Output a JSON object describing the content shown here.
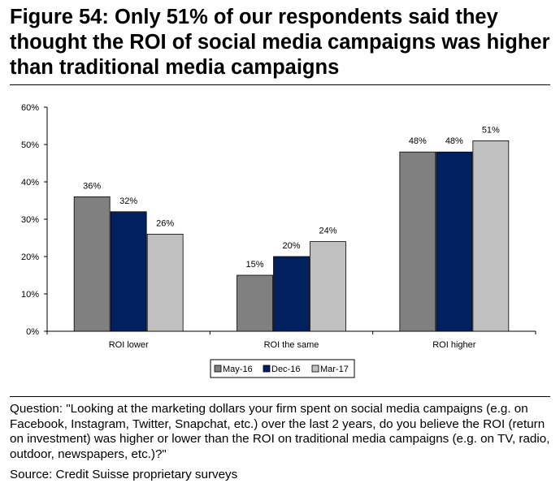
{
  "figure": {
    "title": "Figure 54: Only 51% of our respondents said they thought the ROI of social media campaigns was higher than traditional media campaigns",
    "question": "Question: \"Looking at the marketing dollars your firm spent on social media campaigns (e.g. on Facebook, Instagram, Twitter, Snapchat, etc.) over the last 2 years, do you believe the ROI (return on investment) was higher or lower than the ROI on traditional media campaigns (e.g. on TV, radio, outdoor, newspapers, etc.)?\"",
    "source": "Source: Credit Suisse proprietary surveys"
  },
  "chart_data": {
    "type": "bar",
    "title": "",
    "xlabel": "",
    "ylabel": "",
    "categories": [
      "ROI lower",
      "ROI the same",
      "ROI higher"
    ],
    "series": [
      {
        "name": "May-16",
        "values": [
          36,
          15,
          48
        ],
        "color": "#808080"
      },
      {
        "name": "Dec-16",
        "values": [
          32,
          20,
          48
        ],
        "color": "#002060"
      },
      {
        "name": "Mar-17",
        "values": [
          26,
          24,
          51
        ],
        "color": "#c0c0c0"
      }
    ],
    "ylim": [
      0,
      60
    ],
    "yticks": [
      0,
      10,
      20,
      30,
      40,
      50,
      60
    ],
    "ytick_labels": [
      "0%",
      "10%",
      "20%",
      "30%",
      "40%",
      "50%",
      "60%"
    ],
    "value_labels": [
      [
        "36%",
        "15%",
        "48%"
      ],
      [
        "32%",
        "20%",
        "48%"
      ],
      [
        "26%",
        "24%",
        "51%"
      ]
    ],
    "grid": false,
    "legend_position": "bottom"
  }
}
